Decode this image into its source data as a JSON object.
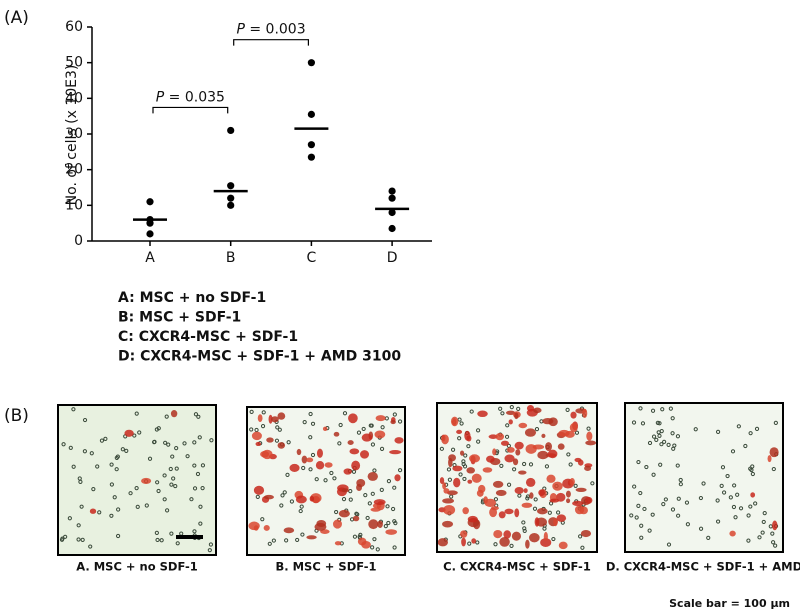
{
  "panel_a_label": "(A)",
  "chart_data": {
    "type": "dotplot",
    "y_label": "No. of cells (x 10E3)",
    "categories": [
      "A",
      "B",
      "C",
      "D"
    ],
    "points": [
      [
        11,
        6,
        5,
        2
      ],
      [
        31,
        15.5,
        12,
        10
      ],
      [
        50,
        35.5,
        27,
        23.5
      ],
      [
        14,
        12,
        8,
        3.5
      ]
    ],
    "medians": [
      6,
      14,
      31.5,
      9
    ],
    "color": "#000000",
    "ylim": [
      0,
      60
    ],
    "yticks": [
      0,
      10,
      20,
      30,
      40,
      50,
      60
    ],
    "annotations": [
      "P = 0.035",
      "P = 0.003"
    ],
    "category_notes": [
      "A: MSC + no SDF-1",
      "B: MSC + SDF-1",
      "C: CXCR4-MSC + SDF-1",
      "D: CXCR4-MSC + SDF-1 + AMD 3100"
    ]
  },
  "panel_b_label": "(B)",
  "images": [
    {
      "caption": "A. MSC + no SDF-1"
    },
    {
      "caption": "B. MSC + SDF-1"
    },
    {
      "caption": "C. CXCR4-MSC + SDF-1"
    },
    {
      "caption": "D. CXCR4-MSC + SDF-1 + AMD"
    }
  ],
  "scale_note": "Scale bar = 100 μm"
}
